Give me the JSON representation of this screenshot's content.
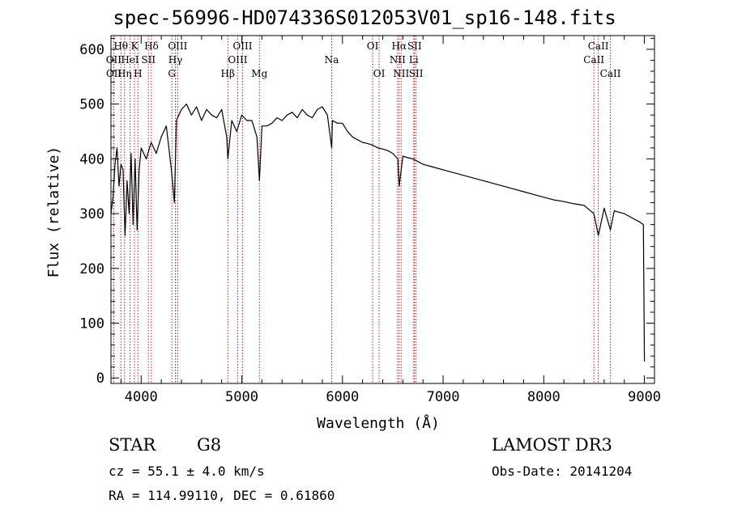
{
  "header": {
    "title": "spec-56996-HD074336S012053V01_sp16-148.fits"
  },
  "info": {
    "object_class": "STAR",
    "subclass": "G8",
    "survey": "LAMOST DR3",
    "cz": "cz = 55.1 ± 4.0 km/s",
    "obs_date": "Obs-Date: 20141204",
    "radec": "RA = 114.99110, DEC =    0.61860"
  },
  "colors": {
    "spectrum": "#000000",
    "line_markers": "#b22222",
    "axes": "#000000"
  },
  "chart_data": {
    "type": "line",
    "xlabel": "Wavelength (Å)",
    "ylabel": "Flux (relative)",
    "xlim": [
      3700,
      9100
    ],
    "ylim": [
      -10,
      625
    ],
    "xticks": [
      4000,
      5000,
      6000,
      7000,
      8000,
      9000
    ],
    "yticks": [
      0,
      100,
      200,
      300,
      400,
      500,
      600
    ],
    "series": [
      {
        "name": "spectrum",
        "x": [
          3700,
          3720,
          3740,
          3760,
          3780,
          3800,
          3820,
          3840,
          3860,
          3880,
          3900,
          3920,
          3940,
          3960,
          3980,
          4000,
          4050,
          4100,
          4150,
          4200,
          4250,
          4300,
          4330,
          4350,
          4400,
          4450,
          4500,
          4550,
          4600,
          4650,
          4700,
          4750,
          4800,
          4850,
          4861,
          4900,
          4950,
          5000,
          5050,
          5100,
          5150,
          5175,
          5200,
          5250,
          5300,
          5350,
          5400,
          5450,
          5500,
          5550,
          5600,
          5650,
          5700,
          5750,
          5800,
          5850,
          5893,
          5900,
          5950,
          6000,
          6050,
          6100,
          6150,
          6200,
          6250,
          6300,
          6350,
          6400,
          6450,
          6500,
          6550,
          6563,
          6600,
          6650,
          6700,
          6750,
          6800,
          6900,
          7000,
          7100,
          7200,
          7300,
          7400,
          7500,
          7600,
          7700,
          7800,
          7900,
          8000,
          8100,
          8200,
          8300,
          8400,
          8498,
          8542,
          8600,
          8662,
          8700,
          8800,
          8900,
          8950,
          8990,
          9000
        ],
        "values": [
          300,
          330,
          390,
          420,
          350,
          390,
          380,
          260,
          360,
          300,
          410,
          280,
          400,
          270,
          380,
          420,
          400,
          430,
          410,
          440,
          460,
          380,
          320,
          470,
          490,
          500,
          480,
          495,
          470,
          490,
          480,
          475,
          490,
          440,
          400,
          470,
          450,
          480,
          470,
          470,
          440,
          360,
          460,
          460,
          465,
          475,
          470,
          480,
          485,
          475,
          490,
          480,
          475,
          490,
          495,
          480,
          420,
          470,
          465,
          465,
          450,
          440,
          435,
          430,
          428,
          425,
          420,
          418,
          415,
          410,
          400,
          350,
          405,
          402,
          400,
          395,
          390,
          385,
          380,
          375,
          370,
          365,
          360,
          355,
          350,
          345,
          340,
          335,
          330,
          325,
          322,
          318,
          315,
          300,
          260,
          310,
          270,
          305,
          300,
          290,
          285,
          280,
          30
        ]
      }
    ],
    "line_markers": [
      {
        "label": "Hθ",
        "wavelength": 3798,
        "row": 0
      },
      {
        "label": "OII",
        "wavelength": 3727,
        "row": 1
      },
      {
        "label": "OII",
        "wavelength": 3729,
        "row": 2
      },
      {
        "label": "K",
        "wavelength": 3934,
        "row": 0
      },
      {
        "label": "HeI",
        "wavelength": 3889,
        "row": 1
      },
      {
        "label": "Hη",
        "wavelength": 3835,
        "row": 2
      },
      {
        "label": "Hδ",
        "wavelength": 4102,
        "row": 0
      },
      {
        "label": "SII",
        "wavelength": 4072,
        "row": 1
      },
      {
        "label": "H",
        "wavelength": 3968,
        "row": 2
      },
      {
        "label": "OIII",
        "wavelength": 4363,
        "row": 0
      },
      {
        "label": "Hγ",
        "wavelength": 4340,
        "row": 1
      },
      {
        "label": "G",
        "wavelength": 4305,
        "row": 2
      },
      {
        "label": "OIII",
        "wavelength": 5007,
        "row": 0
      },
      {
        "label": "OIII",
        "wavelength": 4959,
        "row": 1
      },
      {
        "label": "Hβ",
        "wavelength": 4861,
        "row": 2
      },
      {
        "label": "Mg",
        "wavelength": 5175,
        "row": 2
      },
      {
        "label": "Na",
        "wavelength": 5893,
        "row": 1
      },
      {
        "label": "OI",
        "wavelength": 6300,
        "row": 0
      },
      {
        "label": "OI",
        "wavelength": 6364,
        "row": 2
      },
      {
        "label": "Hα",
        "wavelength": 6563,
        "row": 0
      },
      {
        "label": "NII",
        "wavelength": 6548,
        "row": 1
      },
      {
        "label": "NII",
        "wavelength": 6583,
        "row": 2
      },
      {
        "label": "SII",
        "wavelength": 6716,
        "row": 0
      },
      {
        "label": "Li",
        "wavelength": 6708,
        "row": 1
      },
      {
        "label": "SII",
        "wavelength": 6731,
        "row": 2
      },
      {
        "label": "CaII",
        "wavelength": 8542,
        "row": 0
      },
      {
        "label": "CaII",
        "wavelength": 8498,
        "row": 1
      },
      {
        "label": "CaII",
        "wavelength": 8662,
        "row": 2
      }
    ]
  }
}
